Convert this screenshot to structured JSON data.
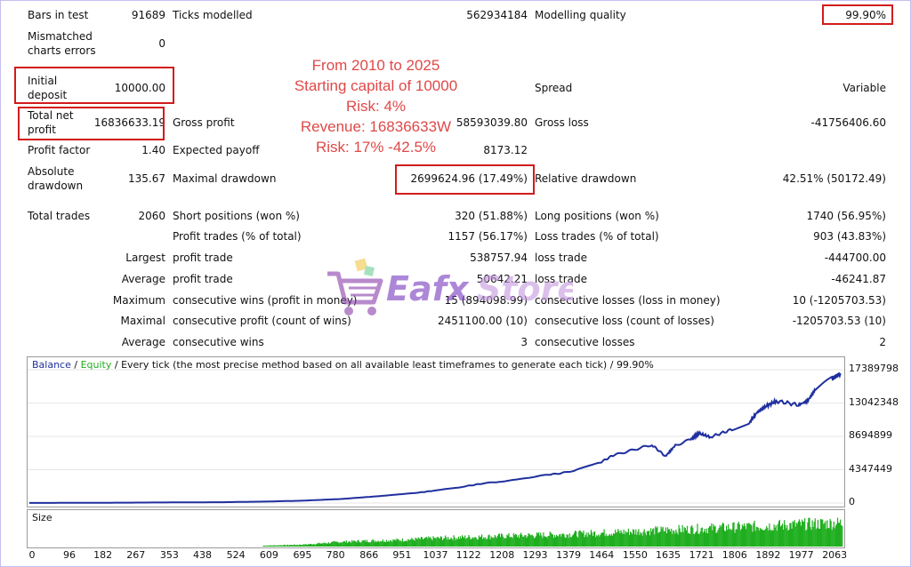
{
  "report": {
    "bars_in_test_label": "Bars in test",
    "bars_in_test_value": "91689",
    "ticks_modelled_label": "Ticks modelled",
    "ticks_modelled_value": "562934184",
    "modelling_quality_label": "Modelling quality",
    "modelling_quality_value": "99.90%",
    "mismatched_label_1": "Mismatched",
    "mismatched_label_2": "charts errors",
    "mismatched_value": "0",
    "initial_deposit_label_1": "Initial",
    "initial_deposit_label_2": "deposit",
    "initial_deposit_value": "10000.00",
    "spread_label": "Spread",
    "spread_value": "Variable",
    "total_net_profit_label_1": "Total net",
    "total_net_profit_label_2": "profit",
    "total_net_profit_value": "16836633.19",
    "gross_profit_label": "Gross profit",
    "gross_profit_value": "58593039.80",
    "gross_loss_label": "Gross loss",
    "gross_loss_value": "-41756406.60",
    "profit_factor_label": "Profit factor",
    "profit_factor_value": "1.40",
    "expected_payoff_label": "Expected payoff",
    "expected_payoff_value": "8173.12",
    "absolute_drawdown_label_1": "Absolute",
    "absolute_drawdown_label_2": "drawdown",
    "absolute_drawdown_value": "135.67",
    "maximal_drawdown_label": "Maximal drawdown",
    "maximal_drawdown_value": "2699624.96 (17.49%)",
    "relative_drawdown_label": "Relative drawdown",
    "relative_drawdown_value": "42.51% (50172.49)",
    "total_trades_label": "Total trades",
    "total_trades_value": "2060",
    "short_positions_label": "Short positions (won %)",
    "short_positions_value": "320 (51.88%)",
    "long_positions_label": "Long positions (won %)",
    "long_positions_value": "1740 (56.95%)",
    "profit_trades_label": "Profit trades (% of total)",
    "profit_trades_value": "1157 (56.17%)",
    "loss_trades_label": "Loss trades (% of total)",
    "loss_trades_value": "903 (43.83%)",
    "largest_label": "Largest",
    "largest_profit_label": "profit trade",
    "largest_profit_value": "538757.94",
    "largest_loss_label": "loss trade",
    "largest_loss_value": "-444700.00",
    "average_label": "Average",
    "average_profit_label": "profit trade",
    "average_profit_value": "50642.21",
    "average_loss_label": "loss trade",
    "average_loss_value": "-46241.87",
    "maximum_label": "Maximum",
    "max_consec_wins_label": "consecutive wins (profit in money)",
    "max_consec_wins_value": "15 (894098.99)",
    "max_consec_losses_label": "consecutive losses (loss in money)",
    "max_consec_losses_value": "10 (-1205703.53)",
    "maximal_label": "Maximal",
    "maximal_consec_profit_label": "consecutive profit (count of wins)",
    "maximal_consec_profit_value": "2451100.00 (10)",
    "maximal_consec_loss_label": "consecutive loss (count of losses)",
    "maximal_consec_loss_value": "-1205703.53 (10)",
    "average2_label": "Average",
    "avg_consec_wins_label": "consecutive wins",
    "avg_consec_wins_value": "3",
    "avg_consec_losses_label": "consecutive losses",
    "avg_consec_losses_value": "2"
  },
  "annotation": {
    "line1": "From 2010 to 2025",
    "line2": "Starting capital of 10000",
    "line3": "Risk:  4%",
    "line4": "Revenue: 16836633W",
    "line5": "Risk: 17% -42.5%"
  },
  "watermark": {
    "text_a": "Eafx",
    "text_b": "Store",
    "icon": "shopping-cart-icon"
  },
  "chart_data": {
    "type": "line",
    "legend": {
      "balance": "Balance",
      "sep1": " / ",
      "equity": "Equity",
      "sep2": " / ",
      "description": "Every tick (the most precise method based on all available least timeframes to generate each tick)",
      "sep3": " / ",
      "quality": "99.90%"
    },
    "y_ticks": [
      "17389798",
      "13042348",
      "8694899",
      "4347449",
      "0"
    ],
    "ylim": [
      0,
      17389798
    ],
    "x_ticks": [
      "0",
      "96",
      "182",
      "267",
      "353",
      "438",
      "524",
      "609",
      "695",
      "780",
      "866",
      "951",
      "1037",
      "1122",
      "1208",
      "1293",
      "1379",
      "1464",
      "1550",
      "1635",
      "1721",
      "1806",
      "1892",
      "1977",
      "2063"
    ],
    "xlim": [
      0,
      2090
    ],
    "series": [
      {
        "color": "#1f2f9e",
        "x": [
          0,
          150,
          300,
          500,
          600,
          700,
          800,
          900,
          1000,
          1037,
          1080,
          1122,
          1160,
          1208,
          1250,
          1293,
          1340,
          1379,
          1420,
          1464,
          1500,
          1550,
          1600,
          1635,
          1660,
          1700,
          1721,
          1750,
          1806,
          1850,
          1870,
          1892,
          1920,
          1977,
          2000,
          2020,
          2063,
          2085
        ],
        "y": [
          10000,
          25000,
          60000,
          110000,
          180000,
          300000,
          520000,
          900000,
          1350000,
          1600000,
          1850000,
          2200000,
          2500000,
          2800000,
          3000000,
          3400000,
          3700000,
          4000000,
          4500000,
          5200000,
          6200000,
          6900000,
          7600000,
          6100000,
          7500000,
          8300000,
          9100000,
          8600000,
          9600000,
          10400000,
          11800000,
          12600000,
          13300000,
          12800000,
          13300000,
          14800000,
          16200000,
          16900000
        ]
      }
    ],
    "volume": {
      "label": "Size",
      "color": "#1fae1f",
      "x": [
        600,
        700,
        760,
        800,
        866,
        951,
        1037,
        1122,
        1208,
        1293,
        1379,
        1464,
        1550,
        1635,
        1721,
        1806,
        1892,
        1977,
        2063,
        2085
      ],
      "y": [
        4,
        8,
        15,
        20,
        24,
        28,
        35,
        40,
        44,
        48,
        52,
        58,
        64,
        70,
        76,
        82,
        88,
        94,
        100,
        100
      ]
    }
  }
}
